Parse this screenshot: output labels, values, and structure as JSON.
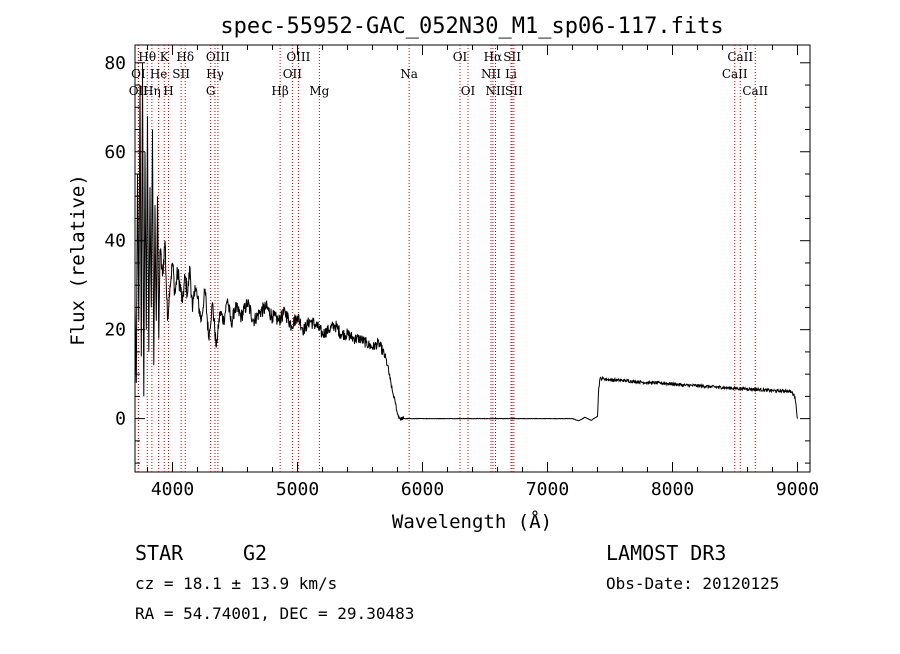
{
  "chart_data": {
    "type": "line",
    "title": "spec-55952-GAC_052N30_M1_sp06-117.fits",
    "xlabel": "Wavelength (Å)",
    "ylabel": "Flux (relative)",
    "xlim": [
      3700,
      9100
    ],
    "ylim": [
      -12,
      84
    ],
    "xticks": [
      4000,
      5000,
      6000,
      7000,
      8000,
      9000
    ],
    "yticks": [
      0,
      20,
      40,
      60,
      80
    ],
    "series": [
      {
        "name": "flux",
        "x": [
          3700,
          3710,
          3720,
          3730,
          3740,
          3750,
          3760,
          3770,
          3780,
          3790,
          3800,
          3810,
          3820,
          3830,
          3840,
          3850,
          3860,
          3870,
          3880,
          3890,
          3900,
          3920,
          3940,
          3960,
          3980,
          4000,
          4020,
          4040,
          4060,
          4080,
          4100,
          4120,
          4140,
          4160,
          4180,
          4200,
          4230,
          4260,
          4290,
          4320,
          4350,
          4380,
          4410,
          4440,
          4470,
          4500,
          4550,
          4600,
          4650,
          4700,
          4750,
          4800,
          4850,
          4900,
          4950,
          5000,
          5050,
          5100,
          5150,
          5200,
          5250,
          5300,
          5350,
          5400,
          5450,
          5500,
          5550,
          5600,
          5650,
          5700,
          5720,
          5740,
          5760,
          5780,
          5800,
          5820,
          5850,
          5900,
          6000,
          6200,
          6400,
          6600,
          6800,
          7000,
          7200,
          7250,
          7300,
          7350,
          7380,
          7400,
          7410,
          7420,
          7450,
          7500,
          7600,
          7700,
          7800,
          7900,
          8000,
          8100,
          8200,
          8300,
          8400,
          8500,
          8600,
          8700,
          8800,
          8850,
          8900,
          8950,
          8980,
          9000
        ],
        "values": [
          26,
          8,
          55,
          22,
          75,
          14,
          80,
          5,
          60,
          20,
          68,
          15,
          52,
          25,
          65,
          12,
          48,
          22,
          50,
          18,
          38,
          32,
          40,
          22,
          30,
          35,
          28,
          33,
          30,
          26,
          32,
          28,
          34,
          24,
          30,
          27,
          22,
          29,
          18,
          26,
          16,
          24,
          22,
          27,
          21,
          25,
          23,
          26,
          22,
          24,
          25,
          23,
          22,
          24,
          21,
          23,
          20,
          22,
          21,
          19,
          20,
          21,
          19,
          19,
          18,
          18,
          17,
          16,
          17,
          14,
          12,
          9,
          6,
          4,
          1,
          0,
          0,
          0,
          0,
          0,
          0,
          0,
          0,
          0,
          0,
          -0.5,
          0.3,
          -0.4,
          0.2,
          0.5,
          7,
          9,
          9,
          8.7,
          8.6,
          8.3,
          8.1,
          8,
          7.8,
          7.5,
          7.4,
          7.2,
          7,
          6.8,
          6.7,
          6.5,
          6.3,
          6.2,
          6.3,
          6,
          5,
          0
        ]
      }
    ],
    "line_markers": [
      {
        "label": "OI",
        "wavelength": 3727,
        "row": 2
      },
      {
        "label": "OII",
        "wavelength": 3727,
        "row": 3
      },
      {
        "label": "Hθ",
        "wavelength": 3798,
        "row": 1
      },
      {
        "label": "He",
        "wavelength": 3889,
        "row": 2
      },
      {
        "label": "Hη",
        "wavelength": 3835,
        "row": 3
      },
      {
        "label": "Hδ",
        "wavelength": 4102,
        "row": 1
      },
      {
        "label": "K",
        "wavelength": 3934,
        "row": 1
      },
      {
        "label": "H",
        "wavelength": 3968,
        "row": 3
      },
      {
        "label": "SII",
        "wavelength": 4069,
        "row": 2
      },
      {
        "label": "OIII",
        "wavelength": 4363,
        "row": 1
      },
      {
        "label": "Hγ",
        "wavelength": 4340,
        "row": 2
      },
      {
        "label": "G",
        "wavelength": 4305,
        "row": 3
      },
      {
        "label": "Hβ",
        "wavelength": 4861,
        "row": 3
      },
      {
        "label": "OIII",
        "wavelength": 5007,
        "row": 1
      },
      {
        "label": "OII",
        "wavelength": 4959,
        "row": 2
      },
      {
        "label": "Mg",
        "wavelength": 5175,
        "row": 3
      },
      {
        "label": "Na",
        "wavelength": 5893,
        "row": 2
      },
      {
        "label": "OI",
        "wavelength": 6300,
        "row": 1
      },
      {
        "label": "OI",
        "wavelength": 6364,
        "row": 3
      },
      {
        "label": "Hα",
        "wavelength": 6563,
        "row": 1
      },
      {
        "label": "NII",
        "wavelength": 6548,
        "row": 2
      },
      {
        "label": "NII",
        "wavelength": 6584,
        "row": 3
      },
      {
        "label": "SII",
        "wavelength": 6717,
        "row": 1
      },
      {
        "label": "Li",
        "wavelength": 6708,
        "row": 2
      },
      {
        "label": "SII",
        "wavelength": 6731,
        "row": 3
      },
      {
        "label": "CaII",
        "wavelength": 8542,
        "row": 1
      },
      {
        "label": "CaII",
        "wavelength": 8498,
        "row": 2
      },
      {
        "label": "CaII",
        "wavelength": 8662,
        "row": 3
      }
    ]
  },
  "info": {
    "class": "STAR",
    "subclass": "G2",
    "survey": "LAMOST DR3",
    "cz": "cz = 18.1 ± 13.9 km/s",
    "obs_date": "Obs-Date: 20120125",
    "coords": "RA =  54.74001, DEC =  29.30483"
  },
  "colors": {
    "line_marker": "#cc0000",
    "spectrum": "#000000"
  }
}
